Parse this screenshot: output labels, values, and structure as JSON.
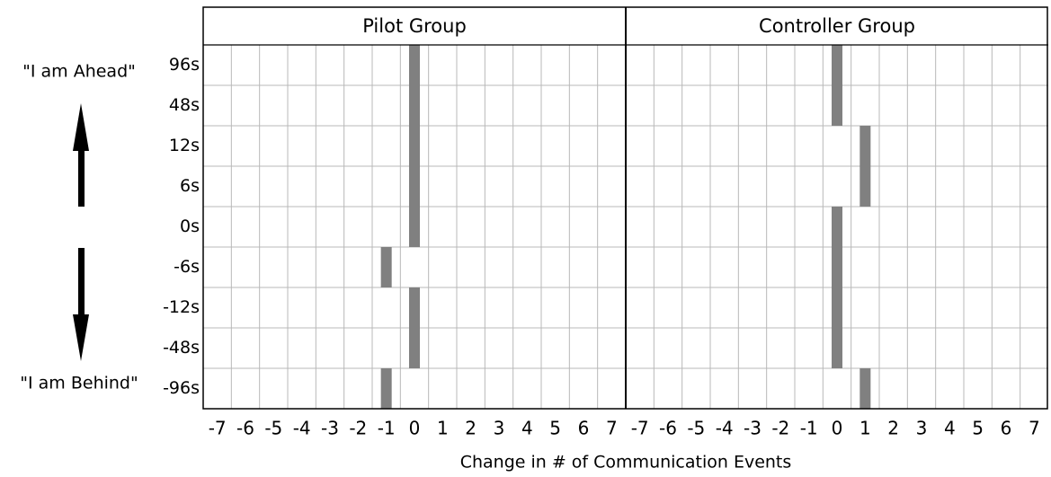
{
  "chart_data": {
    "type": "strip",
    "categories": [
      "96s",
      "48s",
      "12s",
      "6s",
      "0s",
      "-6s",
      "-12s",
      "-48s",
      "-96s"
    ],
    "xlabel": "Change in # of Communication Events",
    "annotations": [
      "\"I am Ahead\"",
      "\"I am Behind\""
    ],
    "xlim": [
      -7.5,
      7.5
    ],
    "xticks": [
      -7,
      -6,
      -5,
      -4,
      -3,
      -2,
      -1,
      0,
      1,
      2,
      3,
      4,
      5,
      6,
      7
    ],
    "color": "#808080",
    "panels": [
      {
        "title": "Pilot Group",
        "values": [
          0,
          0,
          0,
          0,
          0,
          -1,
          0,
          0,
          -1
        ]
      },
      {
        "title": "Controller Group",
        "values": [
          0,
          0,
          1,
          1,
          0,
          0,
          0,
          0,
          1
        ]
      }
    ]
  }
}
